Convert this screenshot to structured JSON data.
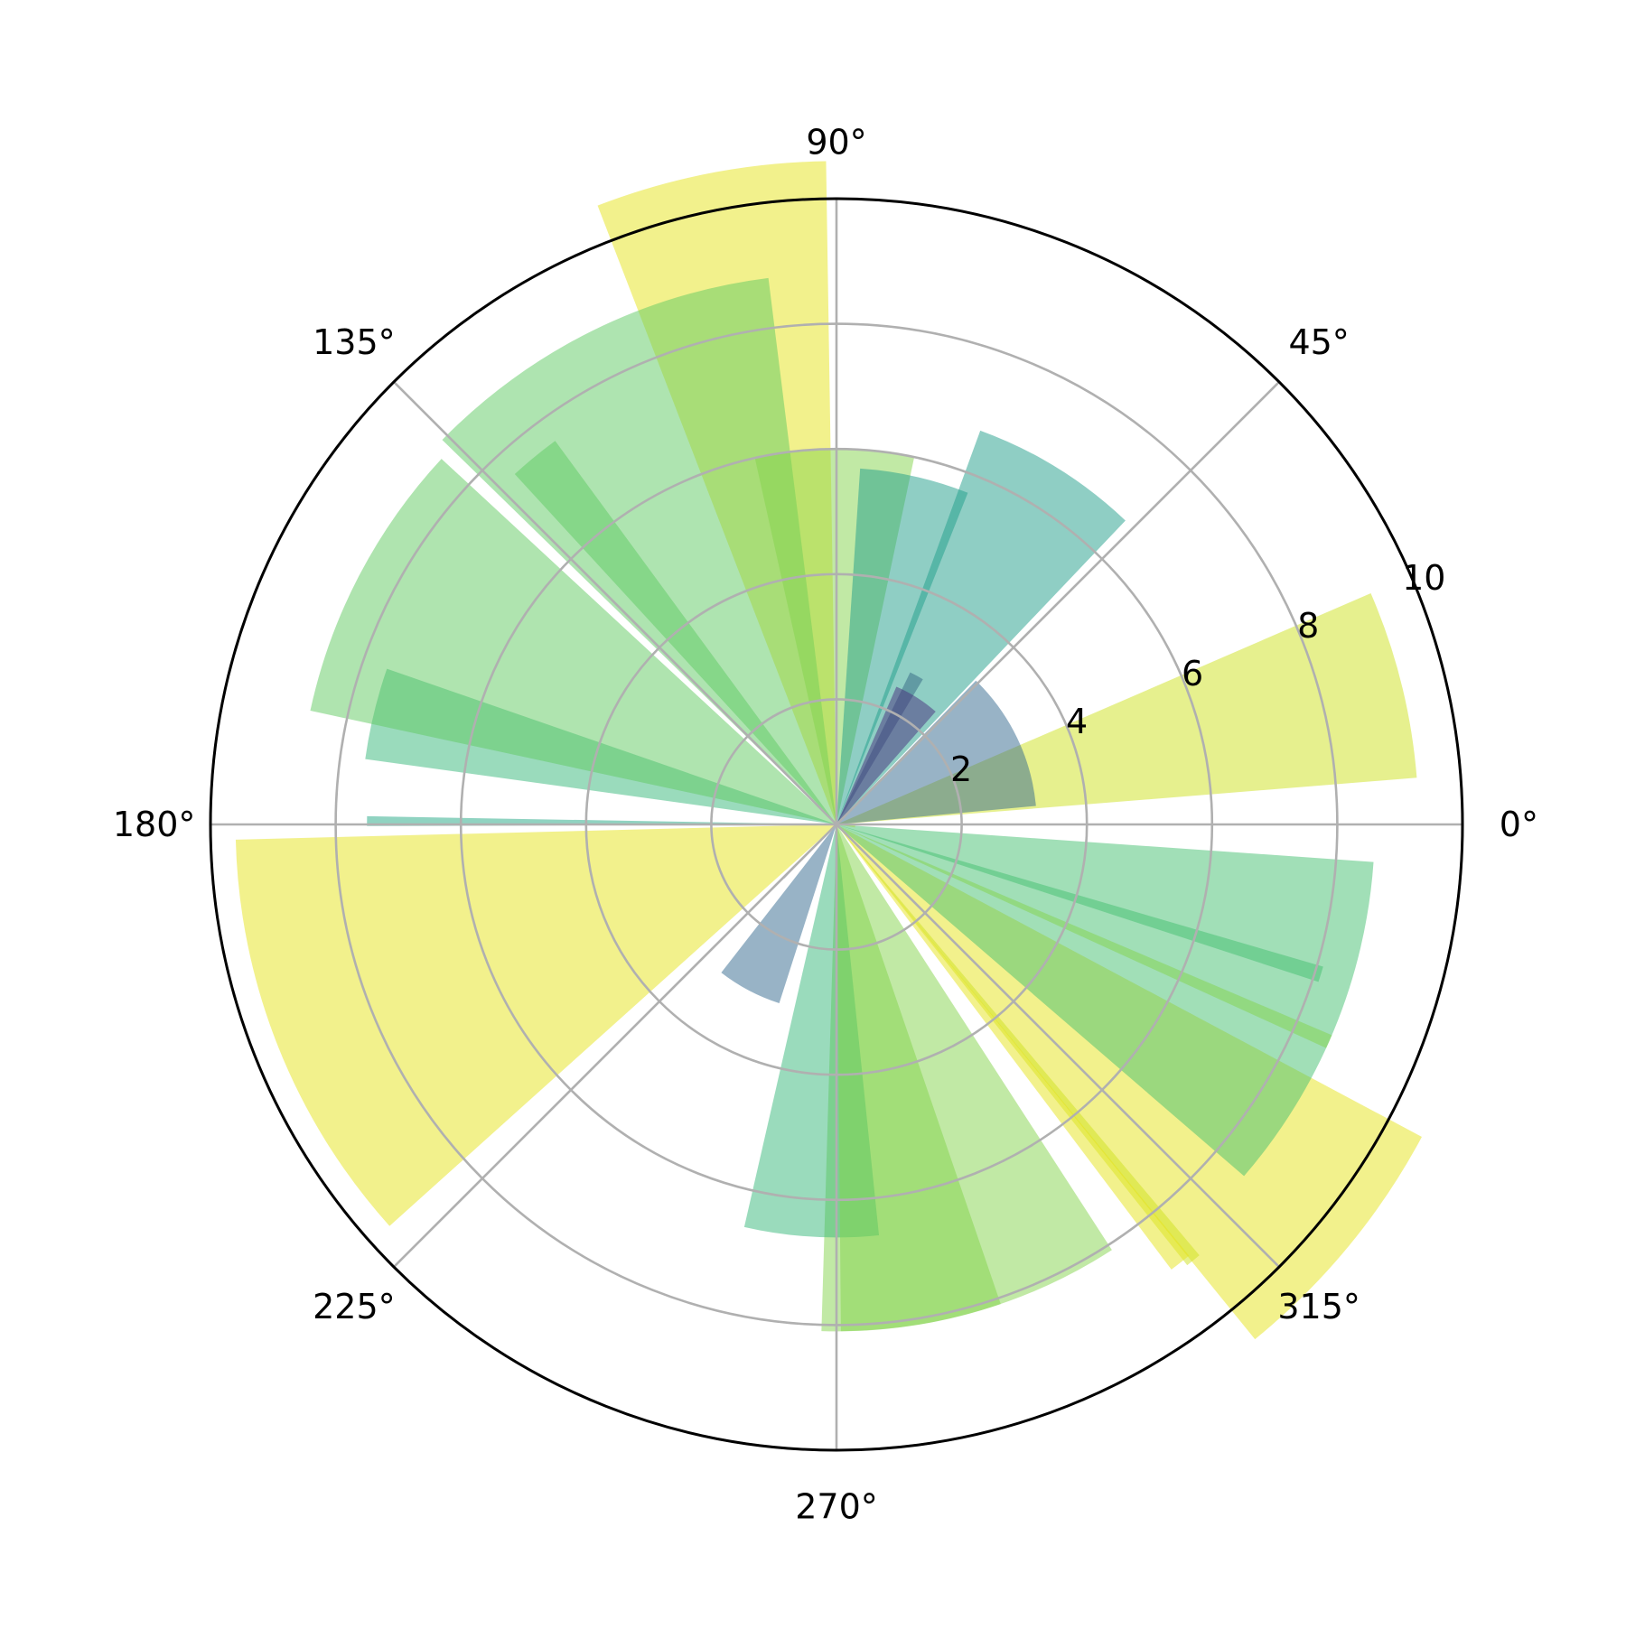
{
  "chart_data": {
    "type": "polar-bar",
    "title": "",
    "theta_unit": "degrees",
    "r_range": [
      0,
      10
    ],
    "r_ticks": [
      "2",
      "4",
      "6",
      "8",
      "10"
    ],
    "theta_ticks": [
      "0°",
      "45°",
      "90°",
      "135°",
      "180°",
      "225°",
      "270°",
      "315°"
    ],
    "grid": true,
    "bar_alpha": 0.5,
    "bars": [
      {
        "theta": 357,
        "width": 12.4,
        "r": 0.3,
        "color": "#fde725"
      },
      {
        "theta": 166.5,
        "width": 11.2,
        "r": 7.6,
        "color": "#35b779"
      },
      {
        "theta": 101,
        "width": 20.2,
        "r": 10.6,
        "color": "#e5e419"
      },
      {
        "theta": 320.5,
        "width": 22.8,
        "r": 10.6,
        "color": "#e5e419"
      },
      {
        "theta": 61.7,
        "width": 4.9,
        "r": 2.7,
        "color": "#472d7b"
      },
      {
        "theta": 225.3,
        "width": 1.4,
        "r": 1.2,
        "color": "#3b528b"
      },
      {
        "theta": 116.4,
        "width": 38.6,
        "r": 8.8,
        "color": "#5ec962"
      },
      {
        "theta": 129.4,
        "width": 6.3,
        "r": 7.6,
        "color": "#5ec962"
      },
      {
        "theta": 14,
        "width": 18.8,
        "r": 9.3,
        "color": "#cde11d"
      },
      {
        "theta": 25.6,
        "width": 40.6,
        "r": 3.2,
        "color": "#31688e"
      },
      {
        "theta": 278.6,
        "width": 20.6,
        "r": 8.1,
        "color": "#84d44b"
      },
      {
        "theta": 337.6,
        "width": 36.8,
        "r": 8.6,
        "color": "#44bf70"
      },
      {
        "theta": 152.5,
        "width": 30.6,
        "r": 8.6,
        "color": "#60ca60"
      },
      {
        "theta": 179.6,
        "width": 1.2,
        "r": 7.5,
        "color": "#22a884"
      },
      {
        "theta": 58.2,
        "width": 23.5,
        "r": 6.7,
        "color": "#1f9e89"
      },
      {
        "theta": 309.3,
        "width": 1.6,
        "r": 9.0,
        "color": "#cde11d"
      },
      {
        "theta": 201.7,
        "width": 40.5,
        "r": 9.6,
        "color": "#e5e419"
      },
      {
        "theta": 266.5,
        "width": 18.8,
        "r": 6.6,
        "color": "#35b779"
      },
      {
        "theta": 242.2,
        "width": 20.1,
        "r": 3.0,
        "color": "#31688e"
      },
      {
        "theta": 90.3,
        "width": 24.5,
        "r": 6.0,
        "color": "#84d44b"
      },
      {
        "theta": 308.1,
        "width": 2.3,
        "r": 8.9,
        "color": "#e5e419"
      },
      {
        "theta": 77.3,
        "width": 17.8,
        "r": 5.7,
        "color": "#1f9e89"
      },
      {
        "theta": 57.6,
        "width": 17.8,
        "r": 2.4,
        "color": "#472d7b"
      },
      {
        "theta": 286.7,
        "width": 32.4,
        "r": 8.1,
        "color": "#84d44b"
      },
      {
        "theta": 342.8,
        "width": 1.8,
        "r": 8.1,
        "color": "#44bf70"
      },
      {
        "theta": 336.2,
        "width": 1.5,
        "r": 8.6,
        "color": "#84d44b"
      }
    ]
  }
}
